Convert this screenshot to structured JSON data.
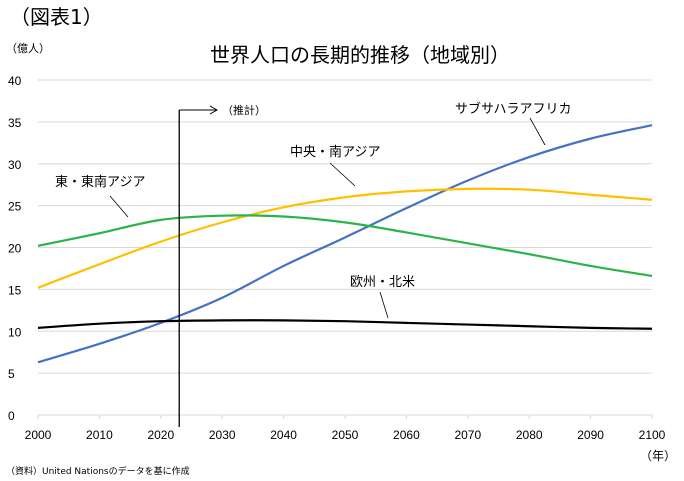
{
  "figure_label": "（図表1）",
  "source_note": "（資料）United Nationsのデータを基に作成",
  "chart_data": {
    "type": "line",
    "title": "世界人口の長期的推移（地域別）",
    "ylabel": "（億人）",
    "xlabel": "（年）",
    "ylim": [
      0,
      40
    ],
    "yticks": [
      0,
      5,
      10,
      15,
      20,
      25,
      30,
      35,
      40
    ],
    "xlim": [
      2000,
      2100
    ],
    "xticks": [
      2000,
      2010,
      2020,
      2030,
      2040,
      2050,
      2060,
      2070,
      2080,
      2090,
      2100
    ],
    "grid": "horizontal",
    "x": [
      2000,
      2010,
      2020,
      2030,
      2040,
      2050,
      2060,
      2070,
      2080,
      2090,
      2100
    ],
    "projection_marker": {
      "year": 2023,
      "label": "（推計）"
    },
    "series": [
      {
        "name": "サブサハラアフリカ",
        "color": "#4472C4",
        "values": [
          6.3,
          8.5,
          11.0,
          14.0,
          17.8,
          21.2,
          24.7,
          28.0,
          30.8,
          33.0,
          34.6
        ]
      },
      {
        "name": "中央・南アジア",
        "color": "#FFC000",
        "values": [
          15.2,
          18.0,
          20.7,
          23.0,
          24.8,
          26.0,
          26.7,
          27.0,
          26.9,
          26.3,
          25.7
        ]
      },
      {
        "name": "東・東南アジア",
        "color": "#2CB34A",
        "values": [
          20.2,
          21.7,
          23.3,
          23.8,
          23.7,
          23.0,
          21.8,
          20.5,
          19.2,
          17.8,
          16.6
        ]
      },
      {
        "name": "欧州・北米",
        "color": "#000000",
        "values": [
          10.4,
          10.9,
          11.2,
          11.3,
          11.3,
          11.2,
          11.0,
          10.8,
          10.6,
          10.4,
          10.3
        ]
      }
    ]
  }
}
